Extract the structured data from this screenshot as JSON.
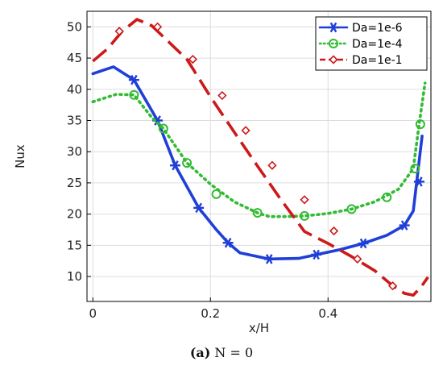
{
  "chart_data": {
    "type": "line",
    "xlabel": "x/H",
    "ylabel": "Nux",
    "xlim": [
      -0.01,
      0.575
    ],
    "ylim": [
      6,
      52.5
    ],
    "xticks": [
      0,
      0.2,
      0.4
    ],
    "xtick_labels": [
      "0",
      "0.2",
      "0.4"
    ],
    "yticks": [
      10,
      15,
      20,
      25,
      30,
      35,
      40,
      45,
      50
    ],
    "ytick_labels": [
      "10",
      "15",
      "20",
      "25",
      "30",
      "35",
      "40",
      "45",
      "50"
    ],
    "grid": true,
    "legend_position": "top-right",
    "series": [
      {
        "name": "Da=1e-6",
        "color": "#1f3fd8",
        "dash": "solid",
        "marker": "asterisk",
        "x": [
          0,
          0.035,
          0.07,
          0.11,
          0.14,
          0.18,
          0.21,
          0.23,
          0.25,
          0.3,
          0.35,
          0.38,
          0.42,
          0.46,
          0.5,
          0.53,
          0.545,
          0.56
        ],
        "y": [
          42.5,
          43.6,
          41.5,
          35,
          27.8,
          21,
          17.5,
          15.4,
          13.8,
          12.8,
          12.9,
          13.5,
          14.3,
          15.3,
          16.6,
          18.2,
          20.5,
          32.5
        ],
        "markers_x": [
          0.07,
          0.11,
          0.14,
          0.18,
          0.23,
          0.3,
          0.38,
          0.46,
          0.53,
          0.555
        ],
        "markers_y": [
          41.5,
          35,
          27.8,
          21,
          15.4,
          12.8,
          13.5,
          15.3,
          18.2,
          25.2
        ]
      },
      {
        "name": "Da=1e-4",
        "color": "#33bb33",
        "dash": "dotted",
        "marker": "circle",
        "x": [
          0,
          0.04,
          0.07,
          0.1,
          0.12,
          0.16,
          0.2,
          0.24,
          0.28,
          0.3,
          0.33,
          0.36,
          0.4,
          0.44,
          0.48,
          0.52,
          0.545,
          0.555,
          0.565
        ],
        "y": [
          38,
          39.2,
          39.1,
          35.5,
          33.7,
          28.2,
          24.8,
          22,
          20.2,
          19.6,
          19.6,
          19.7,
          20.1,
          20.8,
          22,
          24,
          27.3,
          34.4,
          41
        ],
        "markers_x": [
          0.07,
          0.12,
          0.16,
          0.21,
          0.28,
          0.36,
          0.44,
          0.5,
          0.548,
          0.557
        ],
        "markers_y": [
          39.1,
          33.7,
          28.2,
          23.2,
          20.2,
          19.7,
          20.8,
          22.7,
          27.3,
          34.4
        ]
      },
      {
        "name": "Da=1e-1",
        "color": "#cc1a1a",
        "dash": "dashed",
        "marker": "diamond",
        "x": [
          0,
          0.025,
          0.05,
          0.075,
          0.1,
          0.13,
          0.16,
          0.2,
          0.24,
          0.28,
          0.32,
          0.36,
          0.4,
          0.44,
          0.48,
          0.51,
          0.53,
          0.545,
          0.558,
          0.57
        ],
        "y": [
          44.5,
          46.5,
          49.3,
          51.2,
          50.2,
          47.5,
          44.8,
          38.8,
          33.2,
          27.7,
          22.3,
          17.2,
          15.3,
          13.2,
          10.9,
          8.5,
          7.3,
          7.0,
          8.3,
          9.9
        ],
        "markers_x": [
          0.045,
          0.11,
          0.17,
          0.22,
          0.26,
          0.305,
          0.36,
          0.41,
          0.45,
          0.51
        ],
        "markers_y": [
          49.3,
          50,
          44.8,
          39,
          33.4,
          27.8,
          22.3,
          17.3,
          12.8,
          8.5
        ]
      }
    ]
  },
  "caption": {
    "label": "(a)",
    "text": "N = 0"
  }
}
